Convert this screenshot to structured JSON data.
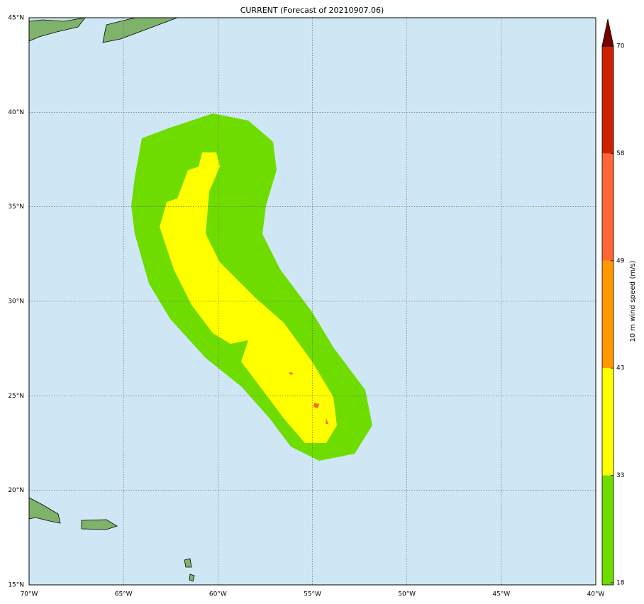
{
  "map": {
    "title": "CURRENT (Forecast of 20210907.06)",
    "lon_range": [
      -70,
      -40
    ],
    "lat_range": [
      15,
      45
    ],
    "lon_ticks": [
      {
        "value": -70,
        "label": "70°W"
      },
      {
        "value": -65,
        "label": "65°W"
      },
      {
        "value": -60,
        "label": "60°W"
      },
      {
        "value": -55,
        "label": "55°W"
      },
      {
        "value": -50,
        "label": "50°W"
      },
      {
        "value": -45,
        "label": "45°W"
      },
      {
        "value": -40,
        "label": "40°W"
      }
    ],
    "lat_ticks": [
      {
        "value": 15,
        "label": "15°N"
      },
      {
        "value": 20,
        "label": "20°N"
      },
      {
        "value": 25,
        "label": "25°N"
      },
      {
        "value": 30,
        "label": "30°N"
      },
      {
        "value": 35,
        "label": "35°N"
      },
      {
        "value": 40,
        "label": "40°N"
      },
      {
        "value": 45,
        "label": "45°N"
      }
    ],
    "colorbar": {
      "label": "10 m wind speed (m/s)",
      "levels": [
        18,
        33,
        43,
        49,
        58,
        70
      ],
      "colors": [
        "#6fdc00",
        "#ffff00",
        "#ff9900",
        "#ff6633",
        "#cc2200",
        "#7a0000"
      ]
    }
  }
}
